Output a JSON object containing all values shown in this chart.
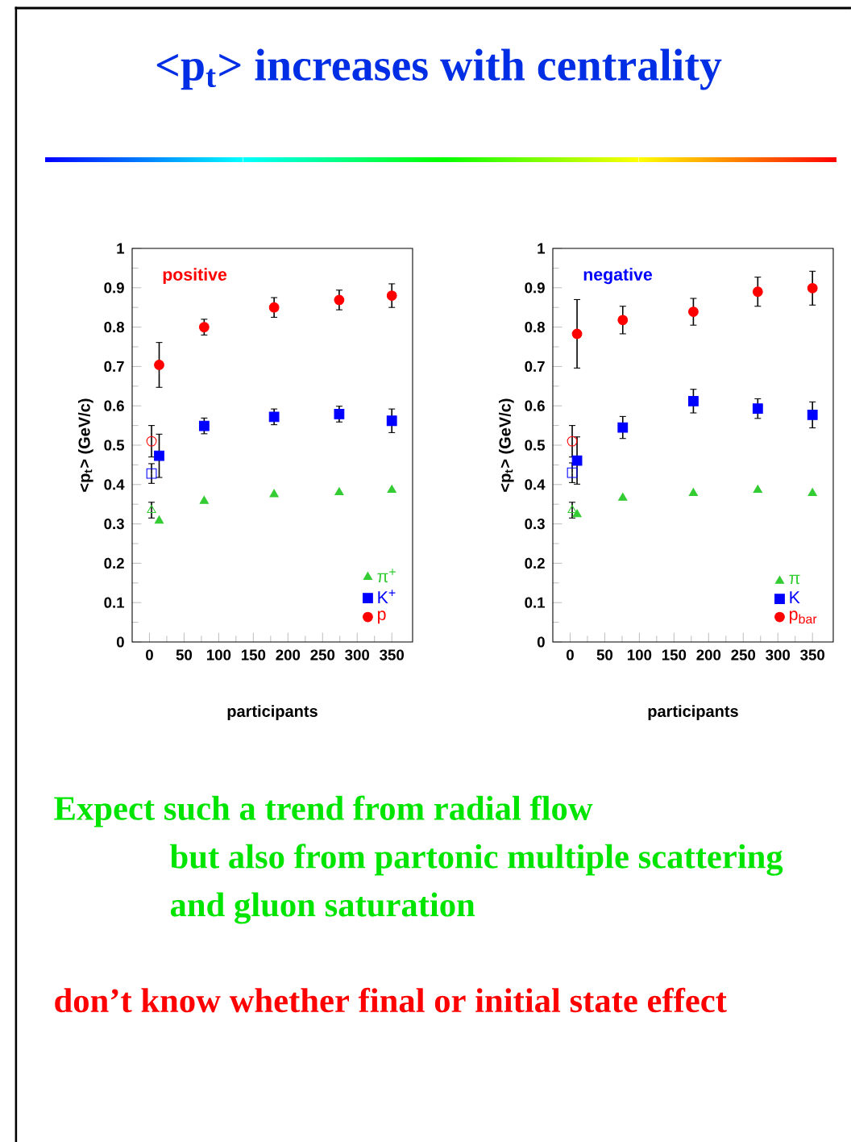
{
  "chart_data": [
    {
      "type": "other",
      "title": "<p$_{t}$> increases with centrality",
      "annotations": [
        "Expect such a trend from radial flow",
        "but also from partonic multiple scattering",
        "and gluon saturation",
        "don’t know whether final or initial state effect"
      ]
    },
    {
      "type": "scatter",
      "subtitle": "positive",
      "xlabel": "participants",
      "ylabel": "<p$_{t}$> (GeV/c)",
      "xlim": [
        -25,
        380
      ],
      "xticks": [
        0,
        50,
        100,
        150,
        200,
        250,
        300,
        350
      ],
      "ylim": [
        0,
        1
      ],
      "yticks": [
        0,
        0.1,
        0.2,
        0.3,
        0.4,
        0.5,
        0.6,
        0.7,
        0.8,
        0.9,
        1
      ],
      "legend": "bottom right",
      "series": [
        {
          "name": "π$^{+}$",
          "color": "#33cc33",
          "marker": "triangle",
          "x": [
            14,
            79,
            180,
            274,
            350
          ],
          "values": [
            0.308,
            0.358,
            0.375,
            0.38,
            0.386
          ]
        },
        {
          "name": "K$^{+}$",
          "color": "#0000ff",
          "marker": "square",
          "x": [
            14,
            79,
            180,
            274,
            350
          ],
          "values": [
            0.473,
            0.549,
            0.572,
            0.579,
            0.562
          ],
          "errors": [
            0.055,
            0.02,
            0.02,
            0.02,
            0.03
          ]
        },
        {
          "name": "p",
          "color": "#ff0000",
          "marker": "circle",
          "x": [
            14,
            79,
            180,
            274,
            350
          ],
          "values": [
            0.704,
            0.8,
            0.85,
            0.869,
            0.88
          ],
          "errors": [
            0.057,
            0.02,
            0.025,
            0.025,
            0.03
          ]
        },
        {
          "color": "#33cc33",
          "marker": "triangle",
          "x": [
            3
          ],
          "values": [
            0.335
          ],
          "errors": [
            0.02
          ]
        },
        {
          "color": "#0000ff",
          "marker": "square",
          "x": [
            3
          ],
          "values": [
            0.428
          ],
          "errors": [
            0.025
          ]
        },
        {
          "color": "#ff0000",
          "marker": "circle",
          "x": [
            3
          ],
          "values": [
            0.51
          ],
          "errors": [
            0.04
          ]
        }
      ]
    },
    {
      "type": "scatter",
      "subtitle": "negative",
      "xlabel": "participants",
      "ylabel": "<p$_{t}$> (GeV/c)",
      "xlim": [
        -25,
        380
      ],
      "xticks": [
        0,
        50,
        100,
        150,
        200,
        250,
        300,
        350
      ],
      "ylim": [
        0,
        1
      ],
      "yticks": [
        0,
        0.1,
        0.2,
        0.3,
        0.4,
        0.5,
        0.6,
        0.7,
        0.8,
        0.9,
        1
      ],
      "legend": "bottom right",
      "series": [
        {
          "name": "π",
          "color": "#33cc33",
          "marker": "triangle",
          "x": [
            10,
            76,
            178,
            271,
            350
          ],
          "values": [
            0.324,
            0.366,
            0.378,
            0.386,
            0.378
          ]
        },
        {
          "name": "K",
          "color": "#0000ff",
          "marker": "square",
          "x": [
            10,
            76,
            178,
            271,
            350
          ],
          "values": [
            0.461,
            0.545,
            0.612,
            0.593,
            0.577
          ],
          "errors": [
            0.06,
            0.028,
            0.03,
            0.025,
            0.033
          ]
        },
        {
          "name": "p$_{bar}$",
          "color": "#ff0000",
          "marker": "circle",
          "x": [
            10,
            76,
            178,
            271,
            350
          ],
          "values": [
            0.783,
            0.818,
            0.839,
            0.89,
            0.899
          ],
          "errors": [
            0.087,
            0.035,
            0.034,
            0.037,
            0.043
          ]
        },
        {
          "color": "#33cc33",
          "marker": "triangle",
          "x": [
            3
          ],
          "values": [
            0.335
          ],
          "errors": [
            0.02
          ]
        },
        {
          "color": "#0000ff",
          "marker": "square",
          "x": [
            3
          ],
          "values": [
            0.43
          ],
          "errors": [
            0.025
          ]
        },
        {
          "color": "#ff0000",
          "marker": "circle",
          "x": [
            3
          ],
          "values": [
            0.51
          ],
          "errors": [
            0.04
          ]
        }
      ]
    }
  ]
}
